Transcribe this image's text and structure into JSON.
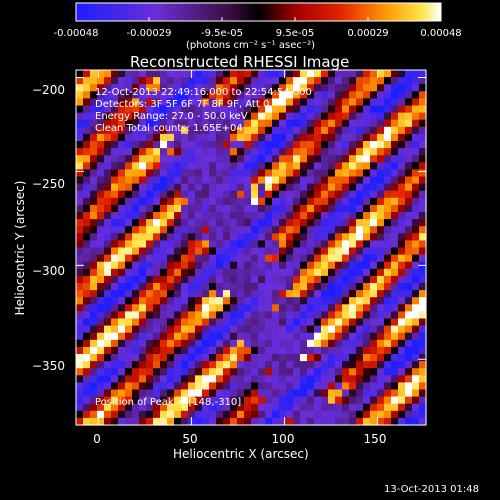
{
  "colorbar": {
    "tick_labels": [
      "-0.00048",
      "-0.00029",
      "-9.5e-05",
      "9.5e-05",
      "0.00029",
      "0.00048"
    ],
    "units_label": "(photons cm⁻² s⁻¹ asec⁻²)",
    "range": [
      -0.00048,
      0.00048
    ]
  },
  "title": "Reconstructed RHESSI Image",
  "annotations": {
    "time_range": "12-Oct-2013 22:49:16.000 to 22:54:54.000",
    "detectors": "Detectors: 3F 5F 6F 7F 8F 9F, Att 0",
    "energy_range": "Energy Range: 27.0 - 50.0 keV",
    "clean_counts": "Clean    Total counts: 1.65E+04",
    "peak_position": "Position of Peak = [148,-310]"
  },
  "footer_timestamp": "13-Oct-2013 01:48",
  "chart_data": {
    "type": "heatmap",
    "title": "Reconstructed RHESSI Image",
    "xlabel": "Heliocentric X (arcsec)",
    "ylabel": "Heliocentric Y (arcsec)",
    "xlim": [
      -12,
      176
    ],
    "ylim": [
      -385,
      -196
    ],
    "x_ticks": [
      0,
      50,
      100,
      150
    ],
    "y_ticks": [
      -200,
      -250,
      -300,
      -350
    ],
    "x_tick_labels": [
      "0",
      "50",
      "100",
      "150"
    ],
    "y_tick_labels": [
      "−200",
      "−250",
      "−300",
      "−350"
    ],
    "colormap": "Red Temperature (black-purple-blue-red-orange-yellow-white, zero = black)",
    "value_range": [
      -0.00048,
      0.00048
    ],
    "peak_position": [
      148,
      -310
    ],
    "grid": false,
    "colors": {
      "low": "#1a1aff",
      "mid": "#000000",
      "high": "#ffffff"
    }
  }
}
